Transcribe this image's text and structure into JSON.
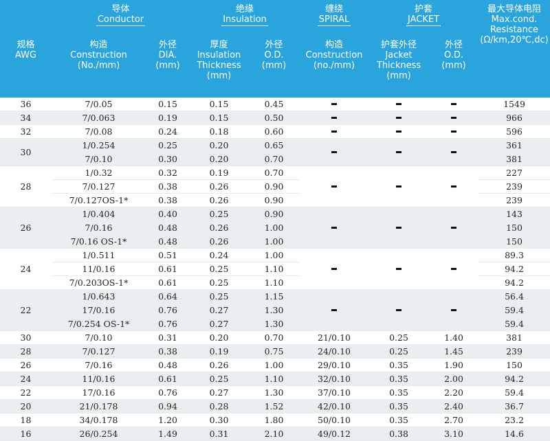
{
  "header": {
    "awg": {
      "zh": "规格",
      "en": "AWG"
    },
    "conductor": {
      "zh": "导体",
      "en": "Conductor"
    },
    "construction": {
      "zh": "构造",
      "en": "Construction",
      "unit": "(No./mm)"
    },
    "dia": {
      "zh": "外径",
      "en": "DIA.",
      "unit": "(mm)"
    },
    "insulation": {
      "zh": "绝缘",
      "en": "Insulation"
    },
    "thickness": {
      "zh": "厚度",
      "en1": "Insulation",
      "en2": "Thickness",
      "unit": "(mm)"
    },
    "ins_od": {
      "zh": "外径",
      "en": "O.D.",
      "unit": "(mm)"
    },
    "spiral": {
      "zh": "缠绕",
      "en": "SPIRAL"
    },
    "spiral_construction": {
      "zh": "构造",
      "en": "Construction",
      "unit": "(no./mm)"
    },
    "jacket": {
      "zh": "护套",
      "en": "JACKET"
    },
    "jacket_thickness": {
      "zh": "护套外径",
      "en1": "Jacket",
      "en2": "Thickness",
      "unit": "(mm)"
    },
    "jacket_od": {
      "zh": "外径",
      "en": "O.D.",
      "unit": "(mm)"
    },
    "maxres": {
      "zh": "最大导体电阻",
      "en1": "Max.cond.",
      "en2": "Resistance",
      "unit": "(Ω/km,20℃,dc)"
    }
  },
  "dash": "–",
  "groups": [
    {
      "awg": "36",
      "shade": false,
      "rows": [
        {
          "construction": "7/0.05",
          "dia": "0.15",
          "ins_t": "0.15",
          "ins_od": "0.45",
          "res": "1549"
        }
      ]
    },
    {
      "awg": "34",
      "shade": true,
      "rows": [
        {
          "construction": "7/0.063",
          "dia": "0.19",
          "ins_t": "0.15",
          "ins_od": "0.50",
          "res": "966"
        }
      ]
    },
    {
      "awg": "32",
      "shade": false,
      "rows": [
        {
          "construction": "7/0.08",
          "dia": "0.24",
          "ins_t": "0.18",
          "ins_od": "0.60",
          "res": "596"
        }
      ]
    },
    {
      "awg": "30",
      "shade": true,
      "rows": [
        {
          "construction": "1/0.254",
          "dia": "0.25",
          "ins_t": "0.20",
          "ins_od": "0.65",
          "res": "361"
        },
        {
          "construction": "7/0.10",
          "dia": "0.30",
          "ins_t": "0.20",
          "ins_od": "0.70",
          "res": "381"
        }
      ]
    },
    {
      "awg": "28",
      "shade": false,
      "rows": [
        {
          "construction": "1/0.32",
          "dia": "0.32",
          "ins_t": "0.19",
          "ins_od": "0.70",
          "res": "227"
        },
        {
          "construction": "7/0.127",
          "dia": "0.38",
          "ins_t": "0.26",
          "ins_od": "0.90",
          "res": "239"
        },
        {
          "construction": "7/0.127OS-1*",
          "dia": "0.38",
          "ins_t": "0.26",
          "ins_od": "0.90",
          "res": "239"
        }
      ]
    },
    {
      "awg": "26",
      "shade": true,
      "rows": [
        {
          "construction": "1/0.404",
          "dia": "0.40",
          "ins_t": "0.25",
          "ins_od": "0.90",
          "res": "143"
        },
        {
          "construction": "7/0.16",
          "dia": "0.48",
          "ins_t": "0.26",
          "ins_od": "1.00",
          "res": "150"
        },
        {
          "construction": "7/0.16 OS-1*",
          "dia": "0.48",
          "ins_t": "0.26",
          "ins_od": "1.00",
          "res": "150"
        }
      ]
    },
    {
      "awg": "24",
      "shade": false,
      "rows": [
        {
          "construction": "1/0.511",
          "dia": "0.51",
          "ins_t": "0.24",
          "ins_od": "1.00",
          "res": "89.3"
        },
        {
          "construction": "11/0.16",
          "dia": "0.61",
          "ins_t": "0.25",
          "ins_od": "1.10",
          "res": "94.2"
        },
        {
          "construction": "7/0.203OS-1*",
          "dia": "0.61",
          "ins_t": "0.25",
          "ins_od": "1.10",
          "res": "94.2"
        }
      ]
    },
    {
      "awg": "22",
      "shade": true,
      "rows": [
        {
          "construction": "1/0.643",
          "dia": "0.64",
          "ins_t": "0.25",
          "ins_od": "1.15",
          "res": "56.4"
        },
        {
          "construction": "17/0.16",
          "dia": "0.76",
          "ins_t": "0.27",
          "ins_od": "1.30",
          "res": "59.4"
        },
        {
          "construction": "7/0.254 OS-1*",
          "dia": "0.76",
          "ins_t": "0.27",
          "ins_od": "1.30",
          "res": "59.4"
        }
      ]
    }
  ],
  "jacket_rows": [
    {
      "awg": "30",
      "construction": "7/0.10",
      "dia": "0.31",
      "ins_t": "0.20",
      "ins_od": "0.70",
      "spiral": "21/0.10",
      "jacket_t": "0.25",
      "jacket_od": "1.40",
      "res": "381"
    },
    {
      "awg": "28",
      "construction": "7/0.127",
      "dia": "0.38",
      "ins_t": "0.19",
      "ins_od": "0.75",
      "spiral": "24/0.10",
      "jacket_t": "0.25",
      "jacket_od": "1.45",
      "res": "239"
    },
    {
      "awg": "26",
      "construction": "7/0.16",
      "dia": "0.48",
      "ins_t": "0.26",
      "ins_od": "1.00",
      "spiral": "29/0.10",
      "jacket_t": "0.35",
      "jacket_od": "1.90",
      "res": "150"
    },
    {
      "awg": "24",
      "construction": "11/0.16",
      "dia": "0.61",
      "ins_t": "0.25",
      "ins_od": "1.10",
      "spiral": "32/0.10",
      "jacket_t": "0.35",
      "jacket_od": "2.00",
      "res": "94.2"
    },
    {
      "awg": "22",
      "construction": "17/0.16",
      "dia": "0.76",
      "ins_t": "0.27",
      "ins_od": "1.30",
      "spiral": "37/0.10",
      "jacket_t": "0.35",
      "jacket_od": "2.20",
      "res": "59.4"
    },
    {
      "awg": "20",
      "construction": "21/0.178",
      "dia": "0.94",
      "ins_t": "0.28",
      "ins_od": "1.52",
      "spiral": "42/0.10",
      "jacket_t": "0.35",
      "jacket_od": "2.40",
      "res": "36.7"
    },
    {
      "awg": "18",
      "construction": "34/0.178",
      "dia": "1.20",
      "ins_t": "0.30",
      "ins_od": "1.80",
      "spiral": "50/0.10",
      "jacket_t": "0.35",
      "jacket_od": "2.70",
      "res": "23.2"
    },
    {
      "awg": "16",
      "construction": "26/0.254",
      "dia": "1.49",
      "ins_t": "0.31",
      "ins_od": "2.10",
      "spiral": "49/0.12",
      "jacket_t": "0.38",
      "jacket_od": "3.10",
      "res": "14.6"
    }
  ]
}
